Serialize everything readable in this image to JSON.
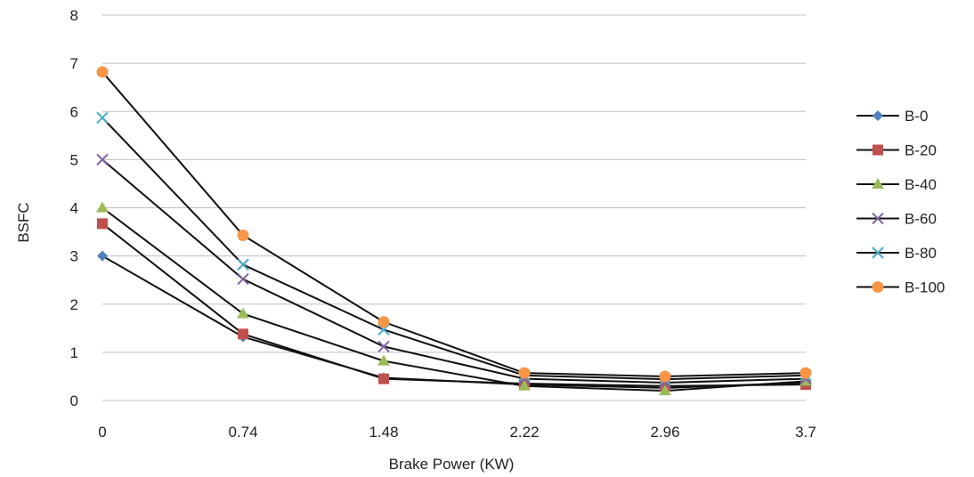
{
  "chart_data": {
    "type": "line",
    "title": "",
    "xlabel": "Brake Power (KW)",
    "ylabel": "BSFC",
    "categories": [
      "0",
      "0.74",
      "1.48",
      "2.22",
      "2.96",
      "3.7"
    ],
    "ylim": [
      0,
      8
    ],
    "yticks": [
      0,
      1,
      2,
      3,
      4,
      5,
      6,
      7,
      8
    ],
    "grid": "horizontal",
    "legend_position": "right",
    "series": [
      {
        "name": "B-0",
        "marker": "diamond",
        "color": "#4f81bd",
        "values": [
          3.0,
          1.32,
          0.47,
          0.33,
          0.26,
          0.37
        ]
      },
      {
        "name": "B-20",
        "marker": "square",
        "color": "#c0504d",
        "values": [
          3.67,
          1.38,
          0.45,
          0.35,
          0.3,
          0.33
        ]
      },
      {
        "name": "B-40",
        "marker": "triangle",
        "color": "#9bbb59",
        "values": [
          4.0,
          1.8,
          0.82,
          0.3,
          0.2,
          0.4
        ]
      },
      {
        "name": "B-60",
        "marker": "x",
        "color": "#8064a2",
        "values": [
          5.0,
          2.52,
          1.12,
          0.45,
          0.37,
          0.45
        ]
      },
      {
        "name": "B-80",
        "marker": "x",
        "color": "#4bacc6",
        "values": [
          5.87,
          2.82,
          1.47,
          0.52,
          0.44,
          0.52
        ]
      },
      {
        "name": "B-100",
        "marker": "circle",
        "color": "#f79646",
        "values": [
          6.82,
          3.43,
          1.63,
          0.57,
          0.5,
          0.57
        ]
      }
    ]
  }
}
